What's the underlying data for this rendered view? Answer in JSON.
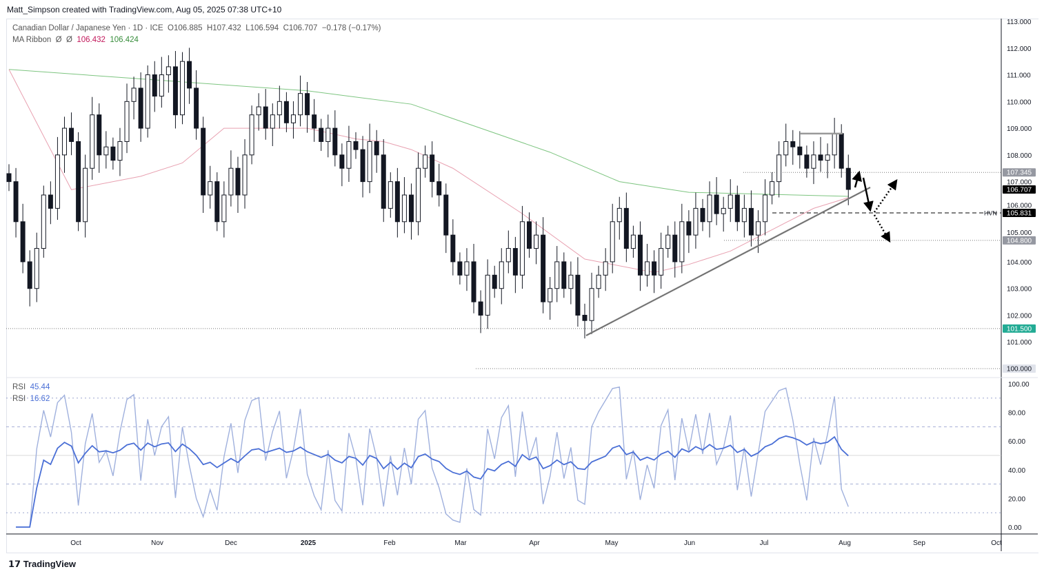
{
  "credit": "Matt_Simpson created with TradingView.com, Aug 05, 2025 07:38 UTC+10",
  "symbol": {
    "name": "Canadian Dollar / Japanese Yen · 1D · ICE",
    "open": "O106.885",
    "high": "H107.432",
    "low": "L106.594",
    "close": "C106.707",
    "change": "−0.178 (−0.17%)"
  },
  "ma_ribbon": {
    "label": "MA Ribbon",
    "sym1": "Ø",
    "sym2": "Ø",
    "v1": "106.432",
    "v2": "106.424",
    "c1": "#c2185b",
    "c2": "#388e3c"
  },
  "rsi_legend": [
    {
      "label": "RSI",
      "value": "45.44"
    },
    {
      "label": "RSI",
      "value": "16.62"
    }
  ],
  "footer": "TradingView",
  "chart_data": {
    "type": "candlestick",
    "price_axis": [
      "113.000",
      "112.000",
      "111.000",
      "110.000",
      "109.000",
      "108.000",
      "107.000",
      "106.000",
      "105.000",
      "104.000",
      "103.000",
      "102.000",
      "101.000",
      "100.000"
    ],
    "ylim": [
      100,
      113
    ],
    "time_axis": [
      "Oct",
      "Nov",
      "Dec",
      "2025",
      "Feb",
      "Mar",
      "Apr",
      "May",
      "Jun",
      "Jul",
      "Aug",
      "Sep",
      "Oct"
    ],
    "closes": [
      107.0,
      105.5,
      104.0,
      103.0,
      104.5,
      106.5,
      106.0,
      108.0,
      109.0,
      108.5,
      105.5,
      107.5,
      109.5,
      108.0,
      108.3,
      107.8,
      108.5,
      110.0,
      110.5,
      109.0,
      111.0,
      110.2,
      111.0,
      111.3,
      109.5,
      111.5,
      110.5,
      109.0,
      106.5,
      107.0,
      105.5,
      106.5,
      107.5,
      106.5,
      108.0,
      109.5,
      109.8,
      109.0,
      109.5,
      110.0,
      109.2,
      109.5,
      110.3,
      109.5,
      109.0,
      108.5,
      109.0,
      108.0,
      107.5,
      108.5,
      108.2,
      107.0,
      108.5,
      108.0,
      106.0,
      107.0,
      105.5,
      106.5,
      105.5,
      107.5,
      108.0,
      107.0,
      106.5,
      105.0,
      104.0,
      103.5,
      104.0,
      102.5,
      102.0,
      103.5,
      103.0,
      104.0,
      104.5,
      103.5,
      105.5,
      104.5,
      105.0,
      102.5,
      103.0,
      104.0,
      103.0,
      103.5,
      102.0,
      101.8,
      103.0,
      103.5,
      104.0,
      105.5,
      106.0,
      104.5,
      105.0,
      103.5,
      104.0,
      103.5,
      104.5,
      105.0,
      104.0,
      105.5,
      105.0,
      106.0,
      105.5,
      106.5,
      105.8,
      106.0,
      106.5,
      105.5,
      106.0,
      105.0,
      105.5,
      106.5,
      107.0,
      108.0,
      108.5,
      108.3,
      108.0,
      107.5,
      108.0,
      107.8,
      108.0,
      108.8,
      107.5,
      106.707
    ],
    "ma_slow": [
      [
        0,
        111.2
      ],
      [
        43,
        110.4
      ],
      [
        58,
        109.9
      ],
      [
        78,
        108.1
      ],
      [
        88,
        107.0
      ],
      [
        98,
        106.6
      ],
      [
        121,
        106.45
      ]
    ],
    "ma_fast": [
      [
        0,
        111.2
      ],
      [
        9,
        106.7
      ],
      [
        19,
        107.2
      ],
      [
        25,
        107.7
      ],
      [
        31,
        109.0
      ],
      [
        43,
        109.0
      ],
      [
        50,
        108.6
      ],
      [
        54,
        108.5
      ],
      [
        58,
        108.2
      ],
      [
        64,
        107.5
      ],
      [
        74,
        105.8
      ],
      [
        83,
        104.1
      ],
      [
        93,
        103.6
      ],
      [
        98,
        103.9
      ],
      [
        104,
        104.4
      ],
      [
        110,
        105.2
      ],
      [
        116,
        106.0
      ],
      [
        121,
        106.4
      ]
    ],
    "colors": {
      "up": "#131722",
      "down": "#131722",
      "ma_slow": "#7cc47f",
      "ma_fast": "#e8a0b0",
      "rsi": "#4a6fd6",
      "rsi_fast": "#9fb0dd"
    },
    "levels": [
      {
        "price": 107.345,
        "label": "107.345",
        "style": "dotted",
        "bg": "#9598a1"
      },
      {
        "price": 106.707,
        "label": "106.707",
        "style": "none",
        "bg": "#000000"
      },
      {
        "price": 105.831,
        "label": "105.831",
        "tag": "HVN",
        "style": "dashed",
        "bg": "#000000"
      },
      {
        "price": 104.8,
        "label": "104.800",
        "style": "dotted",
        "bg": "#9598a1"
      },
      {
        "price": 101.5,
        "label": "101.500",
        "style": "dotted",
        "bg": "#22ab94"
      },
      {
        "price": 100.0,
        "label": "100.000",
        "style": "dotted",
        "bg": "#e0e3eb"
      }
    ],
    "rsi_axis": [
      "100.00",
      "80.00",
      "60.00",
      "40.00",
      "20.00",
      "0.00"
    ],
    "rsi_levels": [
      70,
      50,
      30
    ]
  }
}
